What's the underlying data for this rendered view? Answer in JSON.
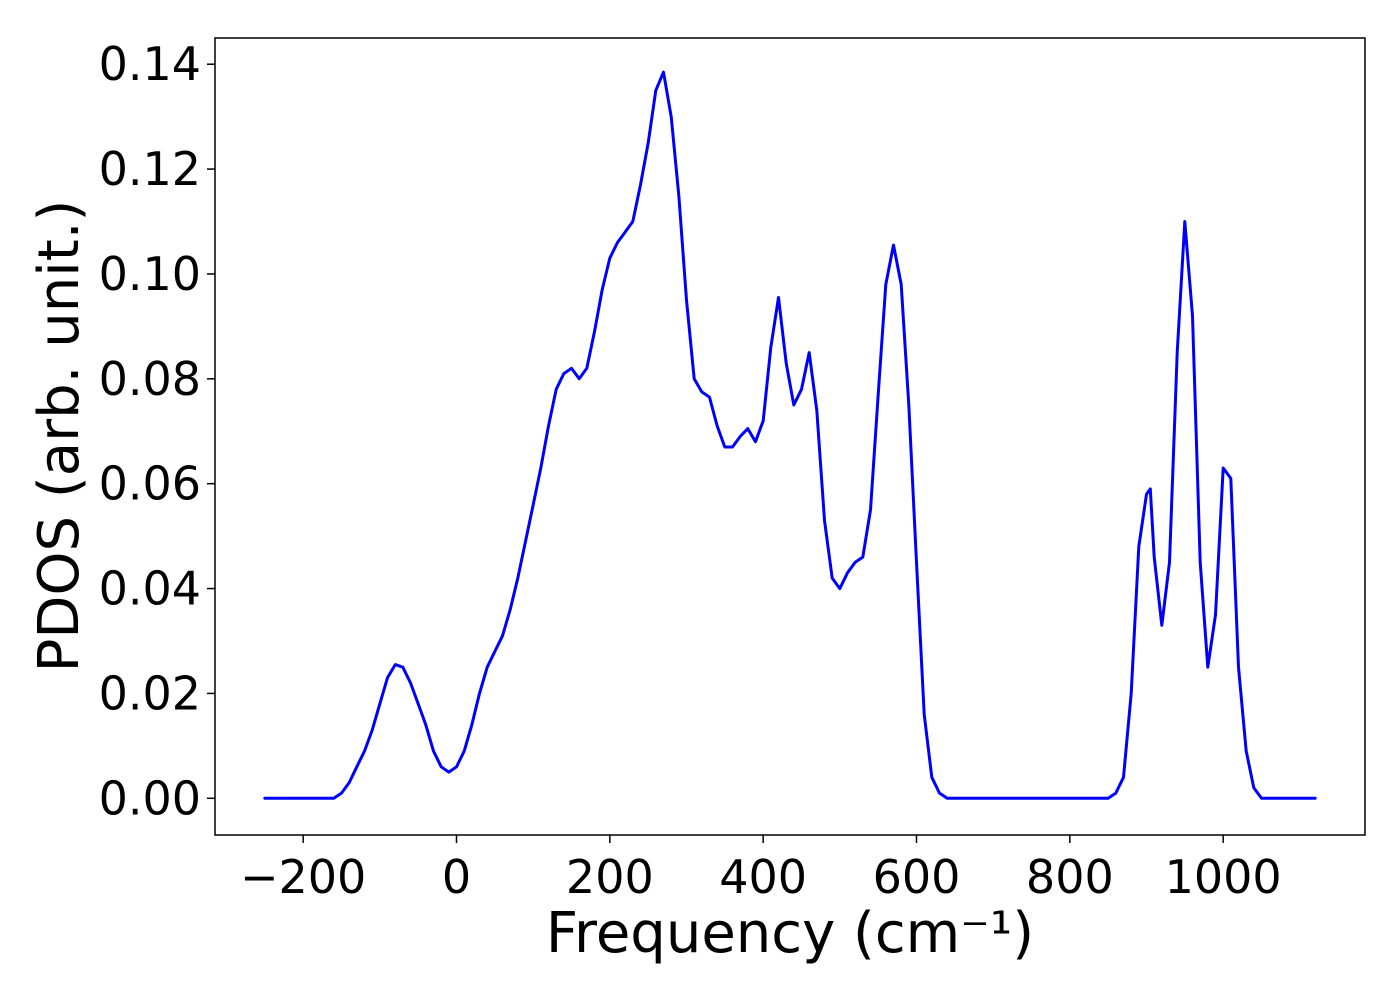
{
  "chart_data": {
    "type": "line",
    "xlabel": "Frequency (cm⁻¹)",
    "ylabel": "PDOS (arb. unit.)",
    "xlim": [
      -315,
      1185
    ],
    "ylim": [
      -0.007,
      0.145
    ],
    "grid": false,
    "x_ticks": [
      -200,
      0,
      200,
      400,
      600,
      800,
      1000
    ],
    "x_tick_labels": [
      "−200",
      "0",
      "200",
      "400",
      "600",
      "800",
      "1000"
    ],
    "y_ticks": [
      0.0,
      0.02,
      0.04,
      0.06,
      0.08,
      0.1,
      0.12,
      0.14
    ],
    "y_tick_labels": [
      "0.00",
      "0.02",
      "0.04",
      "0.06",
      "0.08",
      "0.10",
      "0.12",
      "0.14"
    ],
    "series": [
      {
        "color": "#0000ff",
        "x": [
          -250,
          -200,
          -160,
          -150,
          -140,
          -130,
          -120,
          -110,
          -100,
          -90,
          -80,
          -70,
          -60,
          -50,
          -40,
          -30,
          -20,
          -10,
          0,
          10,
          20,
          30,
          40,
          50,
          60,
          70,
          80,
          90,
          100,
          110,
          120,
          130,
          140,
          150,
          160,
          170,
          180,
          190,
          200,
          210,
          220,
          230,
          240,
          250,
          260,
          270,
          280,
          290,
          300,
          310,
          320,
          330,
          340,
          350,
          360,
          370,
          380,
          390,
          400,
          410,
          420,
          430,
          440,
          450,
          460,
          470,
          480,
          490,
          500,
          510,
          520,
          530,
          540,
          550,
          560,
          570,
          580,
          590,
          600,
          610,
          620,
          630,
          640,
          700,
          800,
          850,
          860,
          870,
          880,
          890,
          900,
          905,
          910,
          920,
          930,
          940,
          950,
          960,
          970,
          980,
          990,
          1000,
          1010,
          1020,
          1030,
          1040,
          1050,
          1060,
          1120
        ],
        "y": [
          0.0,
          0.0,
          0.0,
          0.001,
          0.003,
          0.006,
          0.009,
          0.013,
          0.018,
          0.023,
          0.0255,
          0.025,
          0.022,
          0.018,
          0.014,
          0.009,
          0.006,
          0.005,
          0.006,
          0.009,
          0.014,
          0.02,
          0.025,
          0.028,
          0.031,
          0.036,
          0.042,
          0.049,
          0.056,
          0.063,
          0.071,
          0.078,
          0.081,
          0.082,
          0.08,
          0.082,
          0.089,
          0.097,
          0.103,
          0.106,
          0.108,
          0.11,
          0.117,
          0.125,
          0.135,
          0.1385,
          0.13,
          0.115,
          0.095,
          0.08,
          0.0775,
          0.0765,
          0.071,
          0.067,
          0.067,
          0.069,
          0.0705,
          0.068,
          0.072,
          0.086,
          0.0955,
          0.083,
          0.075,
          0.078,
          0.085,
          0.074,
          0.053,
          0.042,
          0.04,
          0.043,
          0.045,
          0.046,
          0.055,
          0.077,
          0.098,
          0.1055,
          0.098,
          0.075,
          0.045,
          0.016,
          0.004,
          0.001,
          0.0,
          0.0,
          0.0,
          0.0,
          0.001,
          0.004,
          0.02,
          0.048,
          0.058,
          0.059,
          0.046,
          0.033,
          0.045,
          0.085,
          0.11,
          0.092,
          0.045,
          0.025,
          0.035,
          0.063,
          0.061,
          0.025,
          0.009,
          0.002,
          0.0,
          0.0,
          0.0
        ]
      }
    ]
  }
}
